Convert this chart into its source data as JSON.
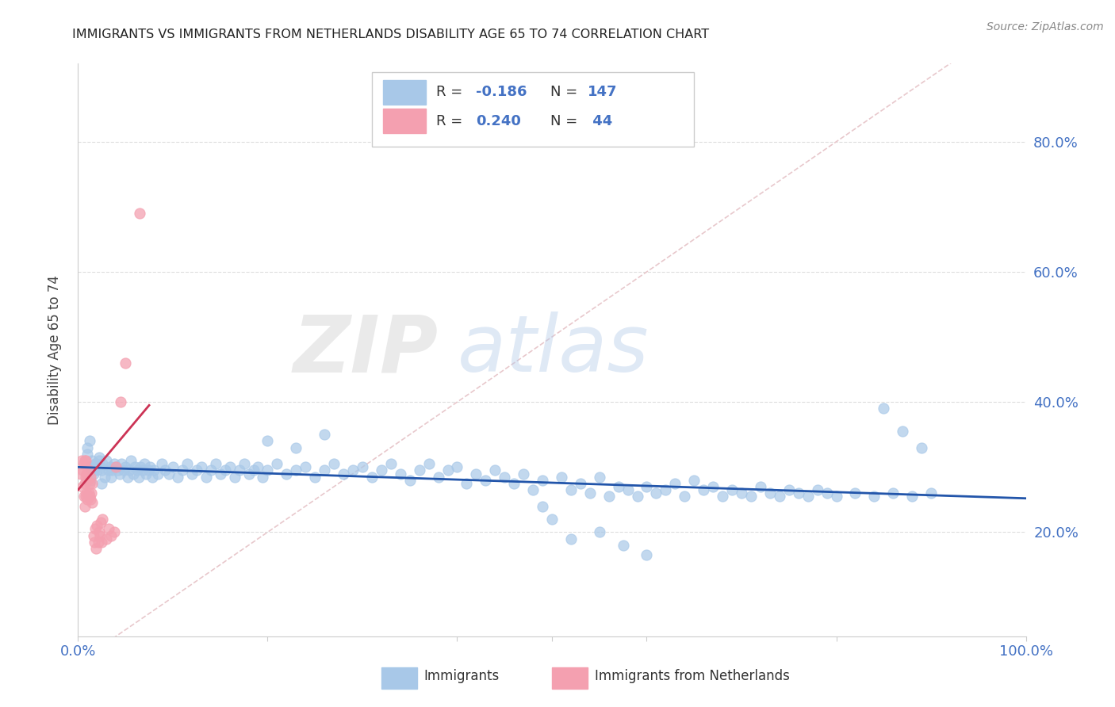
{
  "title": "IMMIGRANTS VS IMMIGRANTS FROM NETHERLANDS DISABILITY AGE 65 TO 74 CORRELATION CHART",
  "source_text": "Source: ZipAtlas.com",
  "ylabel": "Disability Age 65 to 74",
  "xlim": [
    0.0,
    1.0
  ],
  "ylim": [
    0.04,
    0.92
  ],
  "xticks": [
    0.0,
    0.2,
    0.4,
    0.6,
    0.8,
    1.0
  ],
  "xticklabels": [
    "0.0%",
    "",
    "",
    "",
    "",
    "100.0%"
  ],
  "yticks": [
    0.2,
    0.4,
    0.6,
    0.8
  ],
  "yticklabels": [
    "20.0%",
    "40.0%",
    "60.0%",
    "80.0%"
  ],
  "blue_color": "#a8c8e8",
  "pink_color": "#f4a0b0",
  "blue_line_color": "#2255aa",
  "pink_line_color": "#cc3355",
  "diagonal_color": "#dddddd",
  "grid_color": "#dddddd",
  "R_blue": -0.186,
  "N_blue": 147,
  "R_pink": 0.24,
  "N_pink": 44,
  "legend_label_blue": "Immigrants",
  "legend_label_pink": "Immigrants from Netherlands",
  "watermark_zip": "ZIP",
  "watermark_atlas": "atlas",
  "title_fontsize": 11.5,
  "tick_color": "#4472c4",
  "background_color": "#ffffff",
  "blue_trend_x": [
    0.0,
    1.0
  ],
  "blue_trend_y": [
    0.3,
    0.252
  ],
  "pink_trend_x": [
    0.0,
    0.075
  ],
  "pink_trend_y": [
    0.265,
    0.395
  ],
  "blue_scatter_x": [
    0.01,
    0.012,
    0.013,
    0.014,
    0.015,
    0.016,
    0.018,
    0.02,
    0.022,
    0.024,
    0.025,
    0.026,
    0.028,
    0.03,
    0.032,
    0.034,
    0.035,
    0.036,
    0.038,
    0.04,
    0.042,
    0.044,
    0.046,
    0.048,
    0.05,
    0.052,
    0.054,
    0.056,
    0.058,
    0.06,
    0.062,
    0.064,
    0.066,
    0.068,
    0.07,
    0.072,
    0.074,
    0.076,
    0.078,
    0.08,
    0.084,
    0.088,
    0.092,
    0.096,
    0.1,
    0.105,
    0.11,
    0.115,
    0.12,
    0.125,
    0.13,
    0.135,
    0.14,
    0.145,
    0.15,
    0.155,
    0.16,
    0.165,
    0.17,
    0.175,
    0.18,
    0.185,
    0.19,
    0.195,
    0.2,
    0.21,
    0.22,
    0.23,
    0.24,
    0.25,
    0.26,
    0.27,
    0.28,
    0.29,
    0.3,
    0.31,
    0.32,
    0.33,
    0.34,
    0.35,
    0.36,
    0.37,
    0.38,
    0.39,
    0.4,
    0.41,
    0.42,
    0.43,
    0.44,
    0.45,
    0.46,
    0.47,
    0.48,
    0.49,
    0.5,
    0.51,
    0.52,
    0.53,
    0.54,
    0.55,
    0.56,
    0.57,
    0.58,
    0.59,
    0.6,
    0.61,
    0.62,
    0.63,
    0.64,
    0.65,
    0.66,
    0.67,
    0.68,
    0.69,
    0.7,
    0.71,
    0.72,
    0.73,
    0.74,
    0.75,
    0.76,
    0.77,
    0.78,
    0.79,
    0.8,
    0.82,
    0.84,
    0.86,
    0.88,
    0.9,
    0.01,
    0.013,
    0.016,
    0.019,
    0.022,
    0.025,
    0.85,
    0.87,
    0.89,
    0.49,
    0.52,
    0.55,
    0.575,
    0.6,
    0.2,
    0.23,
    0.26
  ],
  "blue_scatter_y": [
    0.32,
    0.34,
    0.3,
    0.295,
    0.31,
    0.29,
    0.305,
    0.295,
    0.315,
    0.3,
    0.295,
    0.305,
    0.285,
    0.31,
    0.295,
    0.3,
    0.285,
    0.295,
    0.305,
    0.3,
    0.295,
    0.29,
    0.305,
    0.295,
    0.3,
    0.285,
    0.295,
    0.31,
    0.29,
    0.3,
    0.295,
    0.285,
    0.3,
    0.295,
    0.305,
    0.29,
    0.295,
    0.3,
    0.285,
    0.295,
    0.29,
    0.305,
    0.295,
    0.29,
    0.3,
    0.285,
    0.295,
    0.305,
    0.29,
    0.295,
    0.3,
    0.285,
    0.295,
    0.305,
    0.29,
    0.295,
    0.3,
    0.285,
    0.295,
    0.305,
    0.29,
    0.295,
    0.3,
    0.285,
    0.295,
    0.305,
    0.29,
    0.295,
    0.3,
    0.285,
    0.295,
    0.305,
    0.29,
    0.295,
    0.3,
    0.285,
    0.295,
    0.305,
    0.29,
    0.28,
    0.295,
    0.305,
    0.285,
    0.295,
    0.3,
    0.275,
    0.29,
    0.28,
    0.295,
    0.285,
    0.275,
    0.29,
    0.265,
    0.28,
    0.22,
    0.285,
    0.265,
    0.275,
    0.26,
    0.285,
    0.255,
    0.27,
    0.265,
    0.255,
    0.27,
    0.26,
    0.265,
    0.275,
    0.255,
    0.28,
    0.265,
    0.27,
    0.255,
    0.265,
    0.26,
    0.255,
    0.27,
    0.26,
    0.255,
    0.265,
    0.26,
    0.255,
    0.265,
    0.26,
    0.255,
    0.26,
    0.255,
    0.26,
    0.255,
    0.26,
    0.33,
    0.28,
    0.295,
    0.305,
    0.31,
    0.275,
    0.39,
    0.355,
    0.33,
    0.24,
    0.19,
    0.2,
    0.18,
    0.165,
    0.34,
    0.33,
    0.35
  ],
  "pink_scatter_x": [
    0.003,
    0.004,
    0.005,
    0.005,
    0.006,
    0.006,
    0.007,
    0.007,
    0.007,
    0.008,
    0.008,
    0.008,
    0.009,
    0.009,
    0.01,
    0.01,
    0.011,
    0.011,
    0.012,
    0.012,
    0.013,
    0.013,
    0.014,
    0.015,
    0.015,
    0.016,
    0.017,
    0.018,
    0.019,
    0.02,
    0.021,
    0.022,
    0.023,
    0.024,
    0.025,
    0.026,
    0.03,
    0.032,
    0.035,
    0.038,
    0.04,
    0.045,
    0.05,
    0.065
  ],
  "pink_scatter_y": [
    0.29,
    0.31,
    0.27,
    0.295,
    0.255,
    0.305,
    0.24,
    0.275,
    0.31,
    0.255,
    0.285,
    0.31,
    0.26,
    0.29,
    0.25,
    0.28,
    0.26,
    0.295,
    0.255,
    0.275,
    0.25,
    0.285,
    0.26,
    0.245,
    0.275,
    0.195,
    0.185,
    0.205,
    0.175,
    0.21,
    0.185,
    0.2,
    0.195,
    0.215,
    0.185,
    0.22,
    0.19,
    0.205,
    0.195,
    0.2,
    0.3,
    0.4,
    0.46,
    0.69
  ]
}
